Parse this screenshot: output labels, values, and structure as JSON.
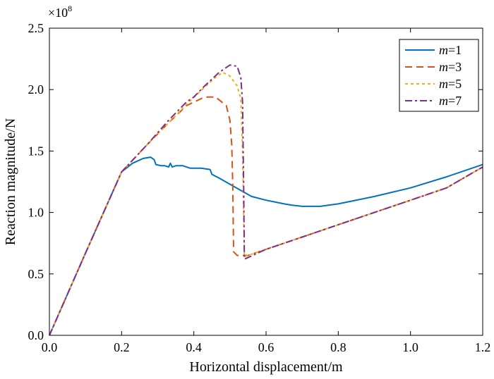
{
  "chart_data": {
    "type": "line",
    "xlabel": "Horizontal displacement/m",
    "ylabel": "Reaction magnitude/N",
    "y_multiplier_label": "×10",
    "y_multiplier_exponent": "8",
    "xlim": [
      0,
      1.2
    ],
    "ylim": [
      0,
      2.5
    ],
    "x_ticks": [
      0.0,
      0.2,
      0.4,
      0.6,
      0.8,
      1.0,
      1.2
    ],
    "x_tick_labels": [
      "0.0",
      "0.2",
      "0.4",
      "0.6",
      "0.8",
      "1.0",
      "1.2"
    ],
    "y_ticks": [
      0.0,
      0.5,
      1.0,
      1.5,
      2.0,
      2.5
    ],
    "y_tick_labels": [
      "0.0",
      "0.5",
      "1.0",
      "1.5",
      "2.0",
      "2.5"
    ],
    "grid": false,
    "legend_position": "top-right",
    "series": [
      {
        "name": "m=1",
        "legend_var": "m",
        "legend_value": "=1",
        "color": "#0072BD",
        "dash": "solid",
        "points": [
          [
            0,
            0
          ],
          [
            0.1,
            0.67
          ],
          [
            0.2,
            1.33
          ],
          [
            0.23,
            1.4
          ],
          [
            0.26,
            1.44
          ],
          [
            0.28,
            1.45
          ],
          [
            0.29,
            1.43
          ],
          [
            0.295,
            1.39
          ],
          [
            0.31,
            1.38
          ],
          [
            0.32,
            1.38
          ],
          [
            0.33,
            1.37
          ],
          [
            0.335,
            1.4
          ],
          [
            0.34,
            1.37
          ],
          [
            0.35,
            1.38
          ],
          [
            0.37,
            1.38
          ],
          [
            0.39,
            1.36
          ],
          [
            0.42,
            1.36
          ],
          [
            0.445,
            1.35
          ],
          [
            0.45,
            1.31
          ],
          [
            0.47,
            1.28
          ],
          [
            0.5,
            1.23
          ],
          [
            0.53,
            1.18
          ],
          [
            0.56,
            1.13
          ],
          [
            0.6,
            1.1
          ],
          [
            0.65,
            1.07
          ],
          [
            0.67,
            1.06
          ],
          [
            0.7,
            1.05
          ],
          [
            0.75,
            1.05
          ],
          [
            0.8,
            1.07
          ],
          [
            0.9,
            1.13
          ],
          [
            1.0,
            1.2
          ],
          [
            1.1,
            1.29
          ],
          [
            1.2,
            1.39
          ]
        ]
      },
      {
        "name": "m=3",
        "legend_var": "m",
        "legend_value": "=3",
        "color": "#D95319",
        "dash": "10,6",
        "points": [
          [
            0,
            0
          ],
          [
            0.1,
            0.67
          ],
          [
            0.2,
            1.33
          ],
          [
            0.27,
            1.55
          ],
          [
            0.33,
            1.73
          ],
          [
            0.38,
            1.87
          ],
          [
            0.43,
            1.94
          ],
          [
            0.46,
            1.94
          ],
          [
            0.49,
            1.87
          ],
          [
            0.5,
            1.75
          ],
          [
            0.505,
            1.55
          ],
          [
            0.508,
            1.2
          ],
          [
            0.51,
            0.68
          ],
          [
            0.52,
            0.65
          ],
          [
            0.55,
            0.65
          ],
          [
            0.6,
            0.7
          ],
          [
            0.7,
            0.8
          ],
          [
            0.8,
            0.9
          ],
          [
            0.9,
            1.0
          ],
          [
            1.0,
            1.1
          ],
          [
            1.1,
            1.2
          ],
          [
            1.2,
            1.37
          ]
        ]
      },
      {
        "name": "m=5",
        "legend_var": "m",
        "legend_value": "=5",
        "color": "#EDB120",
        "dash": "4,4",
        "points": [
          [
            0,
            0
          ],
          [
            0.1,
            0.67
          ],
          [
            0.2,
            1.33
          ],
          [
            0.27,
            1.55
          ],
          [
            0.33,
            1.73
          ],
          [
            0.38,
            1.88
          ],
          [
            0.43,
            2.02
          ],
          [
            0.46,
            2.1
          ],
          [
            0.48,
            2.14
          ],
          [
            0.5,
            2.11
          ],
          [
            0.52,
            2.03
          ],
          [
            0.53,
            1.93
          ],
          [
            0.535,
            1.5
          ],
          [
            0.54,
            0.64
          ],
          [
            0.55,
            0.65
          ],
          [
            0.6,
            0.7
          ],
          [
            0.7,
            0.8
          ],
          [
            0.8,
            0.9
          ],
          [
            0.9,
            1.0
          ],
          [
            1.0,
            1.1
          ],
          [
            1.1,
            1.2
          ],
          [
            1.2,
            1.37
          ]
        ]
      },
      {
        "name": "m=7",
        "legend_var": "m",
        "legend_value": "=7",
        "color": "#7E2F8E",
        "dash": "10,4,3,4",
        "points": [
          [
            0,
            0
          ],
          [
            0.1,
            0.67
          ],
          [
            0.2,
            1.33
          ],
          [
            0.27,
            1.55
          ],
          [
            0.33,
            1.75
          ],
          [
            0.38,
            1.9
          ],
          [
            0.4,
            1.94
          ],
          [
            0.43,
            2.03
          ],
          [
            0.47,
            2.14
          ],
          [
            0.5,
            2.2
          ],
          [
            0.52,
            2.19
          ],
          [
            0.53,
            2.1
          ],
          [
            0.535,
            1.9
          ],
          [
            0.538,
            1.2
          ],
          [
            0.54,
            0.62
          ],
          [
            0.6,
            0.7
          ],
          [
            0.7,
            0.8
          ],
          [
            0.8,
            0.9
          ],
          [
            0.9,
            1.0
          ],
          [
            1.0,
            1.1
          ],
          [
            1.1,
            1.2
          ],
          [
            1.2,
            1.37
          ]
        ]
      }
    ]
  }
}
